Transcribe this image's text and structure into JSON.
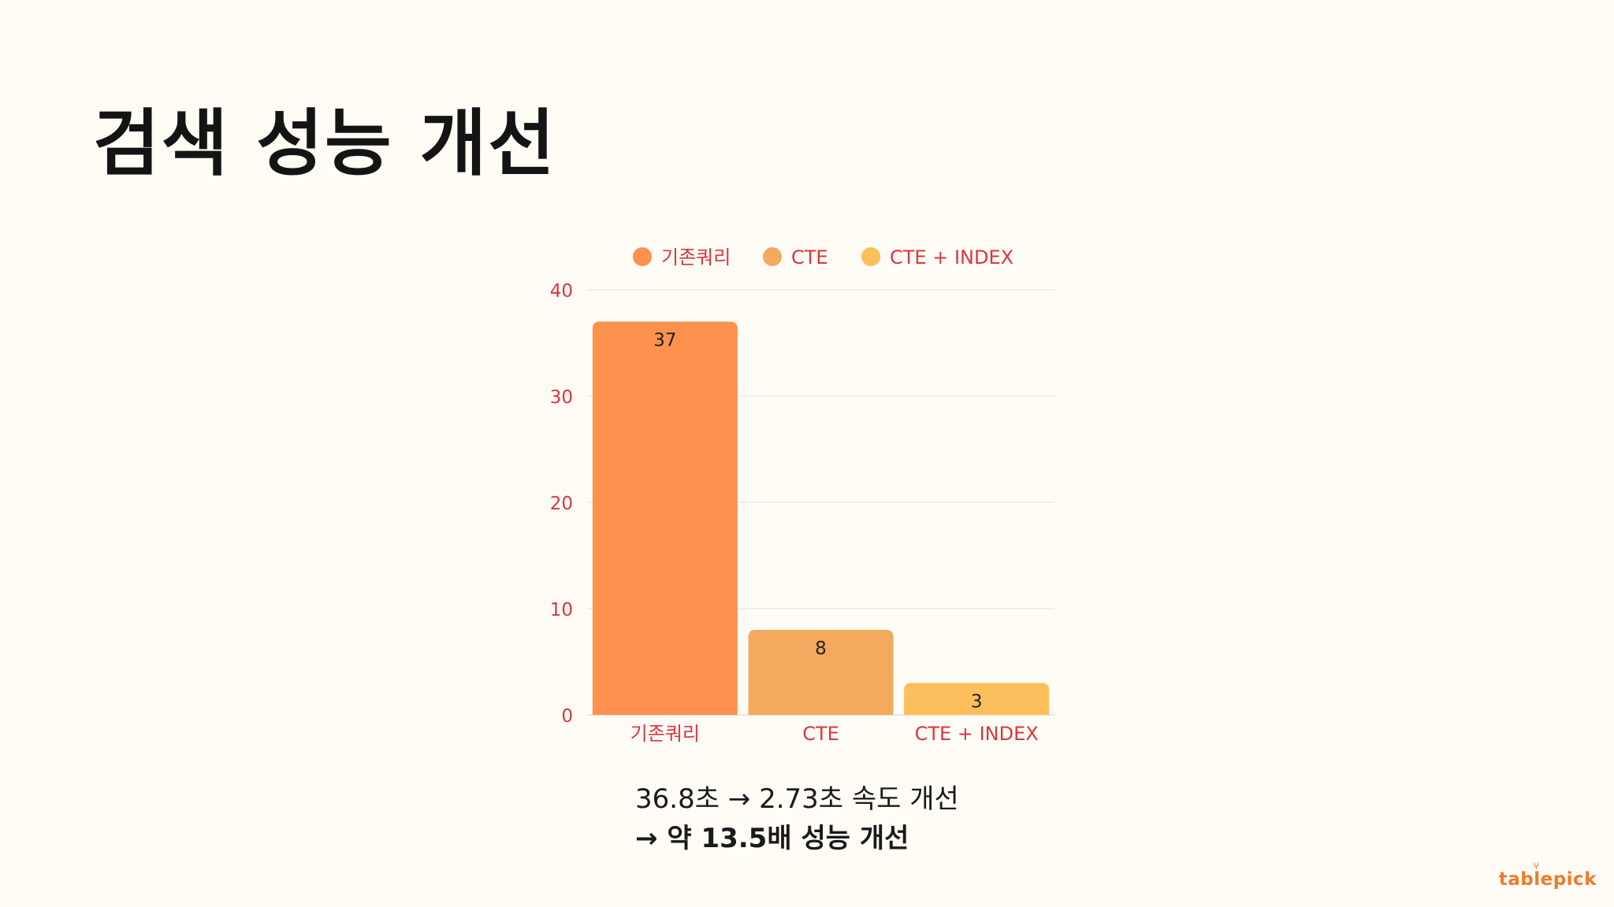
{
  "slide": {
    "title": "검색 성능 개선",
    "summary_line1": "36.8초 → 2.73초 속도 개선",
    "summary_line2": "→ 약 13.5배 성능 개선",
    "brand": "tablepick"
  },
  "colors": {
    "background": "#fffcf6",
    "axis_text": "#d9363e",
    "series1": "#fe914e",
    "series2": "#f3a95e",
    "series3": "#fdbe5c"
  },
  "chart_data": {
    "type": "bar",
    "categories": [
      "기존쿼리",
      "CTE",
      "CTE + INDEX"
    ],
    "series": [
      {
        "name": "기존쿼리",
        "color": "#fe914e"
      },
      {
        "name": "CTE",
        "color": "#f3a95e"
      },
      {
        "name": "CTE + INDEX",
        "color": "#fdbe5c"
      }
    ],
    "values": [
      37,
      8,
      3
    ],
    "data_labels": [
      "37",
      "8",
      "3"
    ],
    "ylim": [
      0,
      40
    ],
    "yticks": [
      0,
      10,
      20,
      30,
      40
    ],
    "ytick_labels": [
      "0",
      "10",
      "20",
      "30",
      "40"
    ],
    "grid": true,
    "legend_position": "top"
  }
}
